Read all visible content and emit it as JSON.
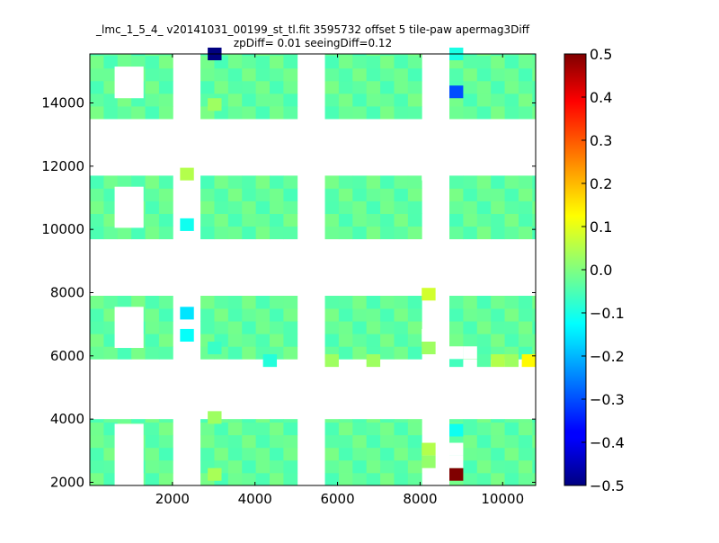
{
  "chart_data": {
    "type": "heatmap",
    "title": "_lmc_1_5_4_ v20141031_00199_st_tl.fit 3595732 offset 5 tile-paw apermag3Diff",
    "subtitle": "zpDiff= 0.01 seeingDiff=0.12",
    "xlabel": "",
    "ylabel": "",
    "xlim": [
      0,
      10800
    ],
    "ylim": [
      1900,
      15550
    ],
    "x_ticks": [
      2000,
      4000,
      6000,
      8000,
      10000
    ],
    "y_ticks": [
      2000,
      4000,
      6000,
      8000,
      10000,
      12000,
      14000
    ],
    "x_tick_labels": [
      "2000",
      "4000",
      "6000",
      "8000",
      "10000"
    ],
    "y_tick_labels": [
      "2000",
      "4000",
      "6000",
      "8000",
      "10000",
      "12000",
      "14000"
    ],
    "colorbar": {
      "vmin": -0.5,
      "vmax": 0.5,
      "colormap": "jet",
      "ticks": [
        0.5,
        0.4,
        0.3,
        0.2,
        0.1,
        0.0,
        -0.1,
        -0.2,
        -0.3,
        -0.4,
        -0.5
      ],
      "tick_labels": [
        "0.5",
        "0.4",
        "0.3",
        "0.2",
        "0.1",
        "0.0",
        "−0.1",
        "−0.2",
        "−0.3",
        "−0.4",
        "−0.5"
      ]
    },
    "cell_size": [
      335,
      400
    ],
    "columns": [
      {
        "x0": 0,
        "x1": 2010
      },
      {
        "x0": 2680,
        "x1": 5025
      },
      {
        "x0": 5695,
        "x1": 8040
      },
      {
        "x0": 8710,
        "x1": 10800
      }
    ],
    "bands": [
      {
        "y0": 1900,
        "y1": 4000
      },
      {
        "y0": 5900,
        "y1": 7900
      },
      {
        "y0": 9700,
        "y1": 11700
      },
      {
        "y0": 13500,
        "y1": 15550
      }
    ],
    "default_value": -0.03,
    "cells": [
      {
        "x": 2855,
        "y": 15350,
        "value": -0.5
      },
      {
        "x": 8710,
        "y": 15350,
        "value": -0.1
      },
      {
        "x": 8710,
        "y": 14150,
        "value": -0.3
      },
      {
        "x": 2855,
        "y": 13750,
        "value": 0.03
      },
      {
        "x": 2185,
        "y": 11550,
        "value": 0.05
      },
      {
        "x": 2185,
        "y": 9950,
        "value": -0.11
      },
      {
        "x": 8040,
        "y": 7750,
        "value": 0.08
      },
      {
        "x": 2185,
        "y": 7150,
        "value": -0.15
      },
      {
        "x": 2185,
        "y": 6450,
        "value": -0.12
      },
      {
        "x": 8040,
        "y": 6050,
        "value": 0.03
      },
      {
        "x": 2855,
        "y": 6050,
        "value": -0.07
      },
      {
        "x": 4195,
        "y": 5650,
        "value": -0.09
      },
      {
        "x": 5695,
        "y": 5650,
        "value": 0.03
      },
      {
        "x": 6700,
        "y": 5650,
        "value": 0.03
      },
      {
        "x": 8710,
        "y": 5650,
        "value": -0.06
      },
      {
        "x": 9380,
        "y": 5650,
        "value": -0.04
      },
      {
        "x": 9715,
        "y": 5650,
        "value": 0.05
      },
      {
        "x": 10050,
        "y": 5650,
        "value": 0.03
      },
      {
        "x": 10465,
        "y": 5650,
        "value": 0.13
      },
      {
        "x": 2855,
        "y": 3850,
        "value": 0.03
      },
      {
        "x": 8710,
        "y": 3450,
        "value": -0.11
      },
      {
        "x": 8040,
        "y": 2850,
        "value": 0.05
      },
      {
        "x": 8710,
        "y": 2050,
        "value": 0.5
      },
      {
        "x": 2855,
        "y": 2050,
        "value": 0.04
      },
      {
        "x": 8040,
        "y": 2450,
        "value": 0.02
      }
    ],
    "empty_cells": [
      {
        "x": 8040,
        "y": 11550
      },
      {
        "x": 8040,
        "y": 6450
      },
      {
        "x": 8710,
        "y": 2850
      },
      {
        "x": 8710,
        "y": 2450
      },
      {
        "x": 8710,
        "y": 5900
      },
      {
        "x": 9045,
        "y": 5900
      }
    ],
    "empty_rects": [
      {
        "x0": 600,
        "x1": 1300,
        "y0": 14150,
        "y1": 15150
      },
      {
        "x0": 600,
        "x1": 1300,
        "y0": 10050,
        "y1": 11350
      },
      {
        "x0": 600,
        "x1": 1300,
        "y0": 6250,
        "y1": 7550
      },
      {
        "x0": 600,
        "x1": 1300,
        "y0": 1900,
        "y1": 3850
      }
    ]
  }
}
